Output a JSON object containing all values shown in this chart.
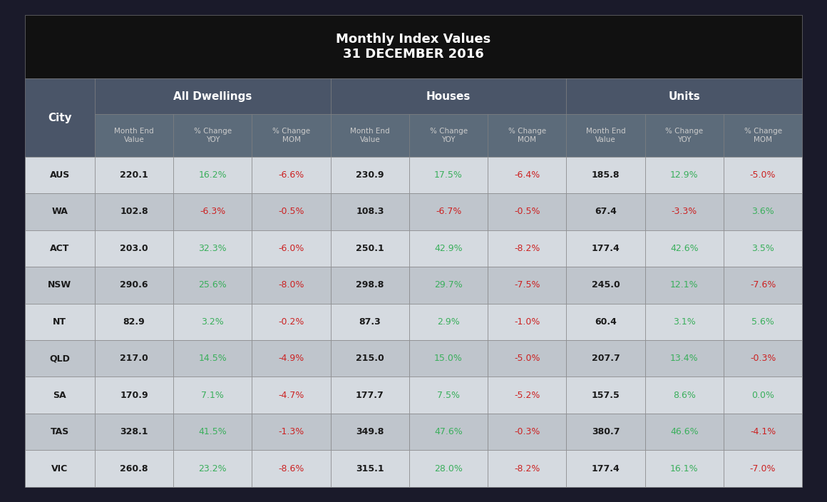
{
  "title": "Monthly Index Values",
  "subtitle": "31 DECEMBER 2016",
  "sub_headers": [
    "Month End\nValue",
    "% Change\nYOY",
    "% Change\nMOM",
    "Month End\nValue",
    "% Change\nYOY",
    "% Change\nMOM",
    "Month End\nValue",
    "% Change\nYOY",
    "% Change\nMOM"
  ],
  "rows": [
    {
      "city": "AUS",
      "values": [
        [
          "220.1",
          "white"
        ],
        [
          "16.2%",
          "green"
        ],
        [
          "-6.6%",
          "red"
        ],
        [
          "230.9",
          "white"
        ],
        [
          "17.5%",
          "green"
        ],
        [
          "-6.4%",
          "red"
        ],
        [
          "185.8",
          "white"
        ],
        [
          "12.9%",
          "green"
        ],
        [
          "-5.0%",
          "red"
        ]
      ]
    },
    {
      "city": "WA",
      "values": [
        [
          "102.8",
          "white"
        ],
        [
          "-6.3%",
          "red"
        ],
        [
          "-0.5%",
          "red"
        ],
        [
          "108.3",
          "white"
        ],
        [
          "-6.7%",
          "red"
        ],
        [
          "-0.5%",
          "red"
        ],
        [
          "67.4",
          "white"
        ],
        [
          "-3.3%",
          "red"
        ],
        [
          "3.6%",
          "green"
        ]
      ]
    },
    {
      "city": "ACT",
      "values": [
        [
          "203.0",
          "white"
        ],
        [
          "32.3%",
          "green"
        ],
        [
          "-6.0%",
          "red"
        ],
        [
          "250.1",
          "white"
        ],
        [
          "42.9%",
          "green"
        ],
        [
          "-8.2%",
          "red"
        ],
        [
          "177.4",
          "white"
        ],
        [
          "42.6%",
          "green"
        ],
        [
          "3.5%",
          "green"
        ]
      ]
    },
    {
      "city": "NSW",
      "values": [
        [
          "290.6",
          "white"
        ],
        [
          "25.6%",
          "green"
        ],
        [
          "-8.0%",
          "red"
        ],
        [
          "298.8",
          "white"
        ],
        [
          "29.7%",
          "green"
        ],
        [
          "-7.5%",
          "red"
        ],
        [
          "245.0",
          "white"
        ],
        [
          "12.1%",
          "green"
        ],
        [
          "-7.6%",
          "red"
        ]
      ]
    },
    {
      "city": "NT",
      "values": [
        [
          "82.9",
          "white"
        ],
        [
          "3.2%",
          "green"
        ],
        [
          "-0.2%",
          "red"
        ],
        [
          "87.3",
          "white"
        ],
        [
          "2.9%",
          "green"
        ],
        [
          "-1.0%",
          "red"
        ],
        [
          "60.4",
          "white"
        ],
        [
          "3.1%",
          "green"
        ],
        [
          "5.6%",
          "green"
        ]
      ]
    },
    {
      "city": "QLD",
      "values": [
        [
          "217.0",
          "white"
        ],
        [
          "14.5%",
          "green"
        ],
        [
          "-4.9%",
          "red"
        ],
        [
          "215.0",
          "white"
        ],
        [
          "15.0%",
          "green"
        ],
        [
          "-5.0%",
          "red"
        ],
        [
          "207.7",
          "white"
        ],
        [
          "13.4%",
          "green"
        ],
        [
          "-0.3%",
          "red"
        ]
      ]
    },
    {
      "city": "SA",
      "values": [
        [
          "170.9",
          "white"
        ],
        [
          "7.1%",
          "green"
        ],
        [
          "-4.7%",
          "red"
        ],
        [
          "177.7",
          "white"
        ],
        [
          "7.5%",
          "green"
        ],
        [
          "-5.2%",
          "red"
        ],
        [
          "157.5",
          "white"
        ],
        [
          "8.6%",
          "green"
        ],
        [
          "0.0%",
          "green"
        ]
      ]
    },
    {
      "city": "TAS",
      "values": [
        [
          "328.1",
          "white"
        ],
        [
          "41.5%",
          "green"
        ],
        [
          "-1.3%",
          "red"
        ],
        [
          "349.8",
          "white"
        ],
        [
          "47.6%",
          "green"
        ],
        [
          "-0.3%",
          "red"
        ],
        [
          "380.7",
          "white"
        ],
        [
          "46.6%",
          "green"
        ],
        [
          "-4.1%",
          "red"
        ]
      ]
    },
    {
      "city": "VIC",
      "values": [
        [
          "260.8",
          "white"
        ],
        [
          "23.2%",
          "green"
        ],
        [
          "-8.6%",
          "red"
        ],
        [
          "315.1",
          "white"
        ],
        [
          "28.0%",
          "green"
        ],
        [
          "-8.2%",
          "red"
        ],
        [
          "177.4",
          "white"
        ],
        [
          "16.1%",
          "green"
        ],
        [
          "-7.0%",
          "red"
        ]
      ]
    }
  ],
  "bg_title": "#111111",
  "bg_header": "#4a5568",
  "bg_subheader": "#5c6b7a",
  "bg_row_light": "#d5dae0",
  "bg_row_dark": "#bfc5cc",
  "text_white": "#ffffff",
  "text_light_gray": "#cccccc",
  "text_green": "#3aaf5c",
  "text_red": "#cc2222",
  "text_dark": "#1a1a1a",
  "border_color": "#888888",
  "outer_bg": "#1a1a2a"
}
